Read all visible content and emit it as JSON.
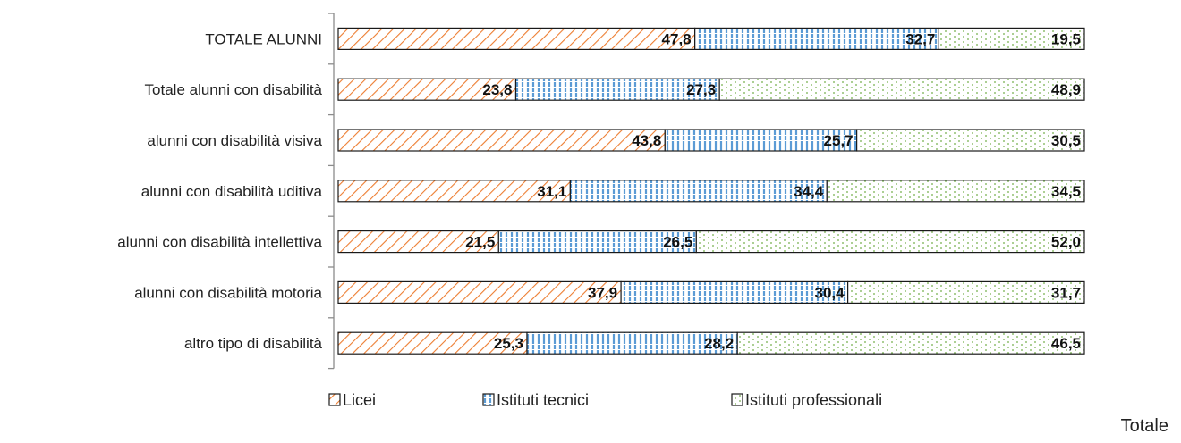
{
  "chart_data": {
    "type": "bar",
    "orientation": "horizontal",
    "stacked": "100%",
    "categories": [
      "TOTALE ALUNNI",
      "Totale alunni con disabilità",
      "alunni con disabilità visiva",
      "alunni con disabilità uditiva",
      "alunni con disabilità intellettiva",
      "alunni con disabilità motoria",
      "altro tipo di disabilità"
    ],
    "series": [
      {
        "name": "Licei",
        "values": [
          47.8,
          23.8,
          43.8,
          31.1,
          21.5,
          37.9,
          25.3
        ],
        "labels": [
          "47,8",
          "23,8",
          "43,8",
          "31,1",
          "21,5",
          "37,9",
          "25,3"
        ],
        "color": "#ed7d31",
        "pattern": "diagonal-hatch"
      },
      {
        "name": "Istituti tecnici",
        "values": [
          32.7,
          27.3,
          25.7,
          34.4,
          26.5,
          30.4,
          28.2
        ],
        "labels": [
          "32,7",
          "27,3",
          "25,7",
          "34,4",
          "26,5",
          "30,4",
          "28,2"
        ],
        "color": "#5b9bd5",
        "pattern": "vertical-lines"
      },
      {
        "name": "Istituti professionali",
        "values": [
          19.5,
          48.9,
          30.5,
          34.5,
          52.0,
          31.7,
          46.5
        ],
        "labels": [
          "19,5",
          "48,9",
          "30,5",
          "34,5",
          "52,0",
          "31,7",
          "46,5"
        ],
        "color": "#70ad47",
        "pattern": "dots"
      }
    ],
    "xlim": [
      0,
      100
    ],
    "grid": false,
    "legend_position": "bottom"
  },
  "footer_text": "Totale"
}
